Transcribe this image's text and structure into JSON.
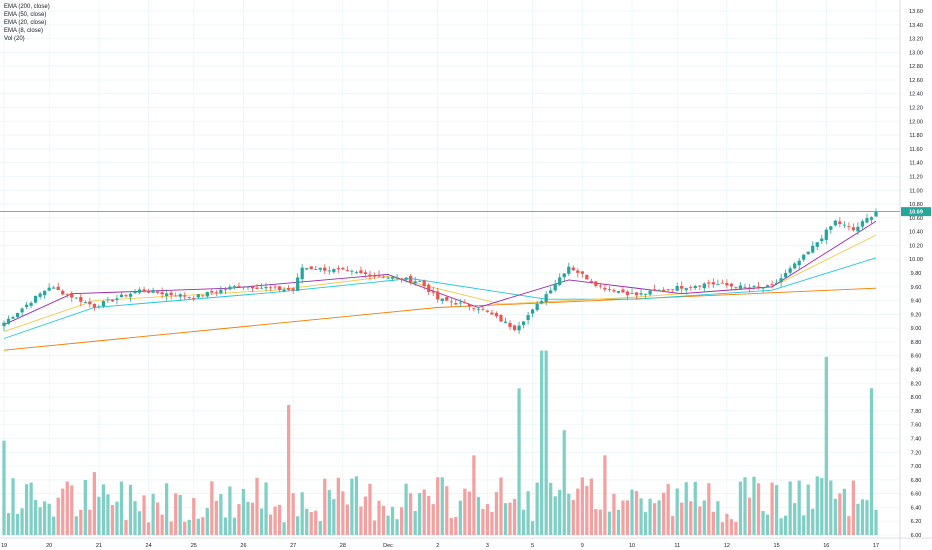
{
  "legend": [
    {
      "label": "EMA (200, close)",
      "color": "#f57c00"
    },
    {
      "label": "EMA (50, close)",
      "color": "#26c6da"
    },
    {
      "label": "EMA (20, close)",
      "color": "#f2c94c"
    },
    {
      "label": "EMA (8, close)",
      "color": "#9c27b0"
    },
    {
      "label": "Vol (20)",
      "color": "#26a69a"
    }
  ],
  "colors": {
    "up": "#26a69a",
    "down": "#ef5350",
    "vol_up": "#7fcfc4",
    "vol_down": "#f2a0a0",
    "grid": "#e8f4f8",
    "price_line": "#26a69a",
    "price_tag_bg": "#26a69a"
  },
  "chart_data": {
    "type": "candlestick",
    "x_ticks": [
      {
        "label": "19",
        "index": 0
      },
      {
        "label": "20",
        "index": 10
      },
      {
        "label": "21",
        "index": 21
      },
      {
        "label": "24",
        "index": 32
      },
      {
        "label": "25",
        "index": 42
      },
      {
        "label": "26",
        "index": 53
      },
      {
        "label": "27",
        "index": 64
      },
      {
        "label": "28",
        "index": 75
      },
      {
        "label": "Dec",
        "index": 85
      },
      {
        "label": "2",
        "index": 96
      },
      {
        "label": "3",
        "index": 107
      },
      {
        "label": "5",
        "index": 117
      },
      {
        "label": "9",
        "index": 128
      },
      {
        "label": "10",
        "index": 139
      },
      {
        "label": "11",
        "index": 149
      },
      {
        "label": "12",
        "index": 160
      },
      {
        "label": "15",
        "index": 171
      },
      {
        "label": "16",
        "index": 182
      },
      {
        "label": "17",
        "index": 193
      }
    ],
    "y_ticks": [
      "13.60",
      "13.40",
      "13.20",
      "13.00",
      "12.80",
      "12.60",
      "12.40",
      "12.20",
      "12.00",
      "11.80",
      "11.60",
      "11.40",
      "11.20",
      "11.00",
      "10.80",
      "10.60",
      "10.40",
      "10.20",
      "10.00",
      "9.80",
      "9.60",
      "9.40",
      "9.20",
      "9.00",
      "8.80",
      "8.60",
      "8.40",
      "8.20",
      "8.00",
      "7.80",
      "7.60",
      "7.40",
      "7.20",
      "7.00",
      "6.80",
      "6.60",
      "6.40",
      "6.20",
      "6.00"
    ],
    "ylim": [
      6.0,
      13.6
    ],
    "last_price": "10.69",
    "key_closes": [
      {
        "index": 0,
        "close": 9.08
      },
      {
        "index": 10,
        "close": 9.6
      },
      {
        "index": 20,
        "close": 9.32
      },
      {
        "index": 30,
        "close": 9.55
      },
      {
        "index": 42,
        "close": 9.45
      },
      {
        "index": 52,
        "close": 9.62
      },
      {
        "index": 64,
        "close": 9.55
      },
      {
        "index": 66,
        "close": 9.88
      },
      {
        "index": 72,
        "close": 9.85
      },
      {
        "index": 84,
        "close": 9.75
      },
      {
        "index": 92,
        "close": 9.68
      },
      {
        "index": 96,
        "close": 9.42
      },
      {
        "index": 105,
        "close": 9.3
      },
      {
        "index": 113,
        "close": 9.0
      },
      {
        "index": 117,
        "close": 9.25
      },
      {
        "index": 125,
        "close": 9.9
      },
      {
        "index": 132,
        "close": 9.6
      },
      {
        "index": 140,
        "close": 9.48
      },
      {
        "index": 148,
        "close": 9.58
      },
      {
        "index": 156,
        "close": 9.65
      },
      {
        "index": 165,
        "close": 9.58
      },
      {
        "index": 170,
        "close": 9.6
      },
      {
        "index": 178,
        "close": 10.1
      },
      {
        "index": 184,
        "close": 10.55
      },
      {
        "index": 188,
        "close": 10.42
      },
      {
        "index": 193,
        "close": 10.69
      }
    ],
    "ema200": [
      [
        0,
        8.68
      ],
      [
        96,
        9.3
      ],
      [
        193,
        9.58
      ]
    ],
    "ema50": [
      [
        0,
        8.85
      ],
      [
        20,
        9.3
      ],
      [
        60,
        9.52
      ],
      [
        90,
        9.72
      ],
      [
        120,
        9.42
      ],
      [
        140,
        9.42
      ],
      [
        170,
        9.55
      ],
      [
        193,
        10.02
      ]
    ],
    "ema20": [
      [
        0,
        8.95
      ],
      [
        20,
        9.4
      ],
      [
        60,
        9.55
      ],
      [
        85,
        9.75
      ],
      [
        110,
        9.35
      ],
      [
        140,
        9.45
      ],
      [
        170,
        9.6
      ],
      [
        193,
        10.35
      ]
    ],
    "ema8": [
      [
        0,
        9.05
      ],
      [
        15,
        9.5
      ],
      [
        50,
        9.58
      ],
      [
        85,
        9.78
      ],
      [
        105,
        9.3
      ],
      [
        125,
        9.7
      ],
      [
        150,
        9.5
      ],
      [
        170,
        9.6
      ],
      [
        193,
        10.55
      ]
    ]
  }
}
